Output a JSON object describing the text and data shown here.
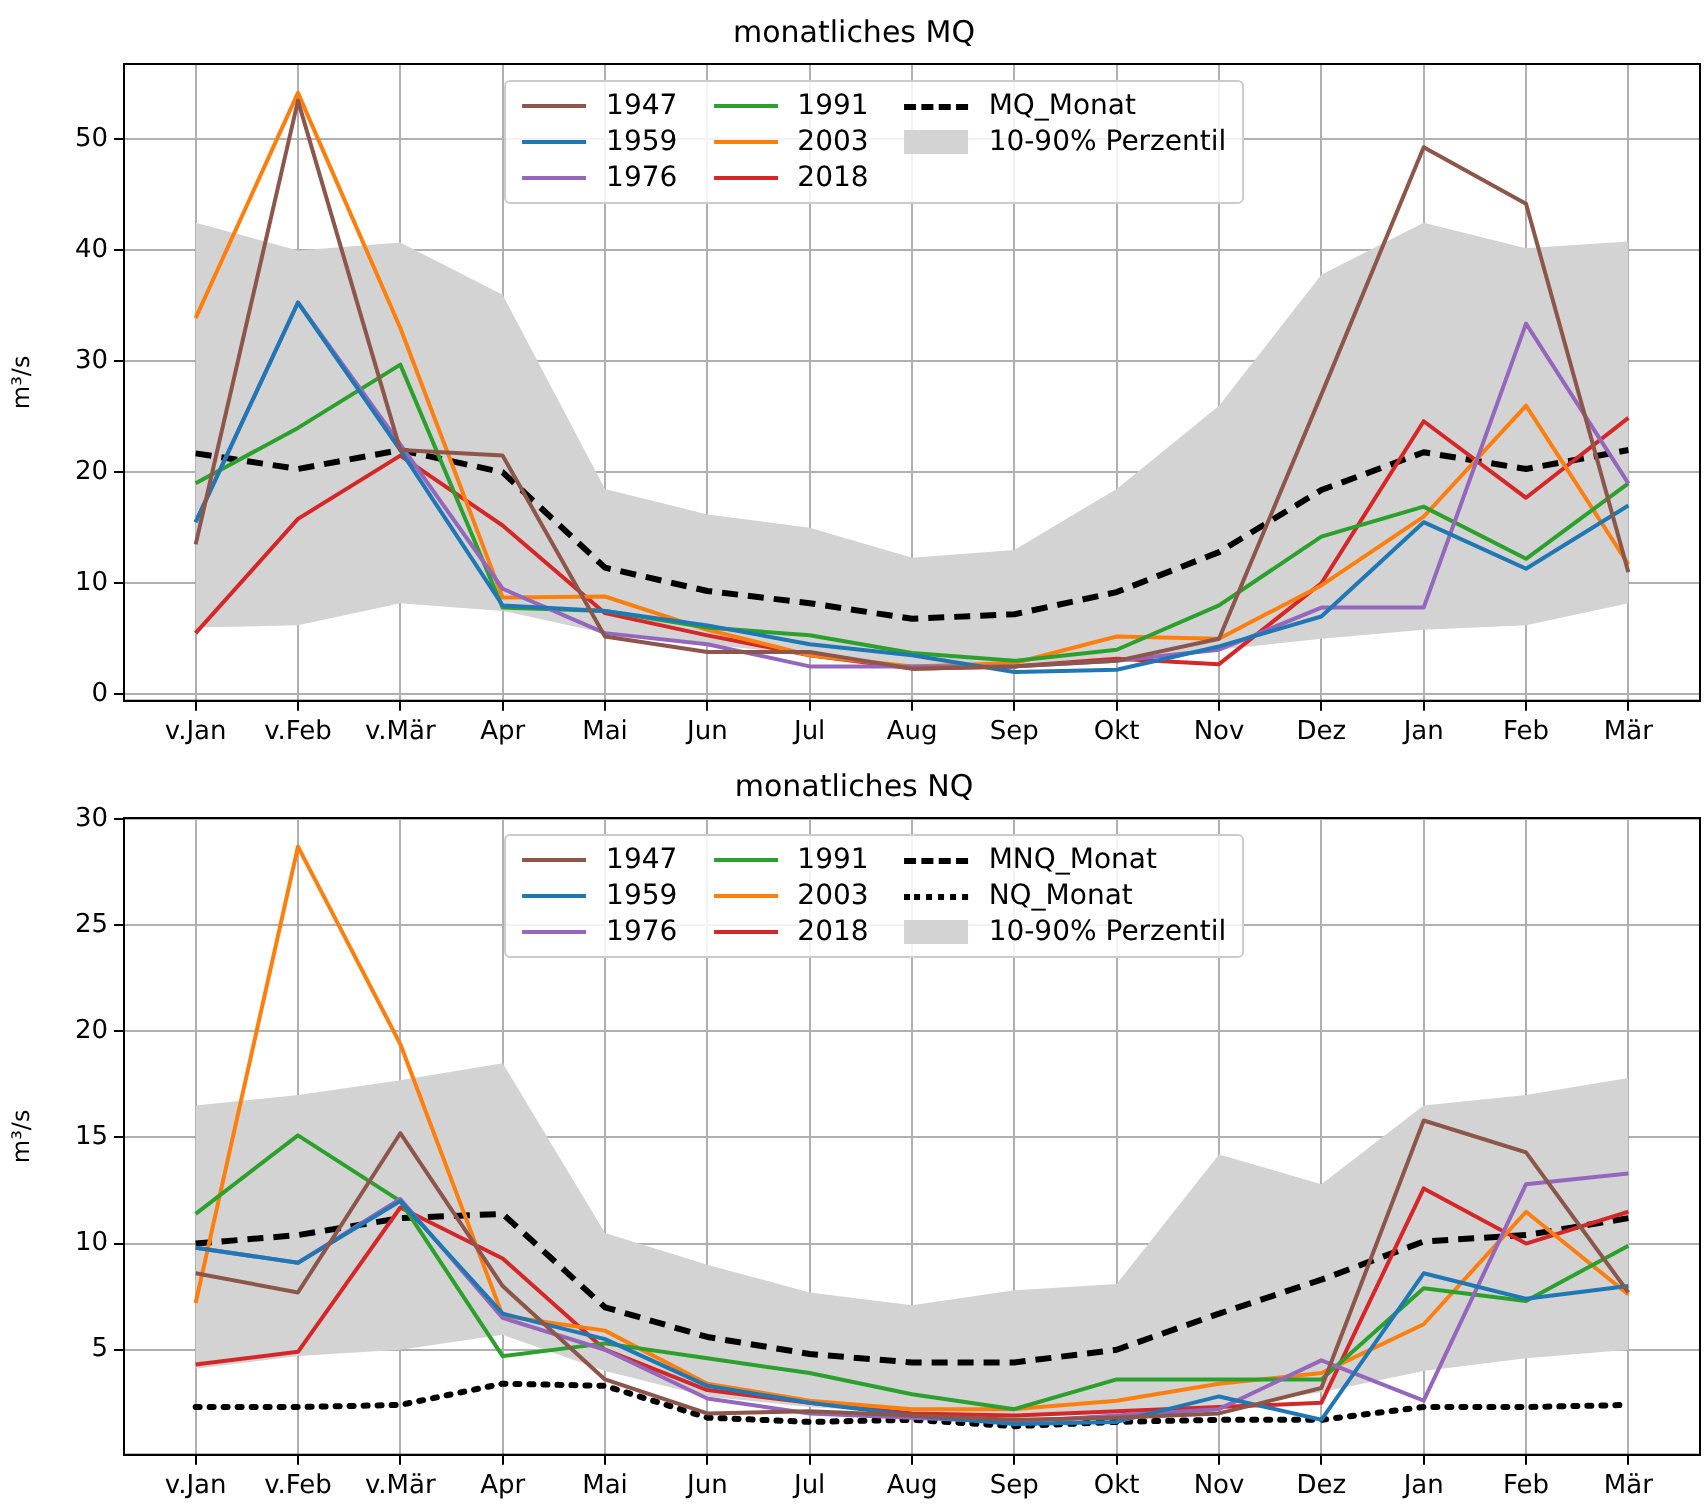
{
  "chart_data": [
    {
      "type": "line",
      "title": "monatliches MQ",
      "ylabel": "m³/s",
      "categories": [
        "v.Jan",
        "v.Feb",
        "v.Mär",
        "Apr",
        "Mai",
        "Jun",
        "Jul",
        "Aug",
        "Sep",
        "Okt",
        "Nov",
        "Dez",
        "Jan",
        "Feb",
        "Mär"
      ],
      "ylim": [
        -0.6,
        56.8
      ],
      "yticks": [
        0,
        10,
        20,
        30,
        40,
        50
      ],
      "grid": true,
      "legend": "top",
      "marker": "none",
      "annotations": [
        "10-90% Perzentil"
      ],
      "series": [
        {
          "name": "1947",
          "color": "#8c564b",
          "values": [
            13.5,
            53.5,
            22,
            21.5,
            5.2,
            3.8,
            3.8,
            2.3,
            2.5,
            3.0,
            5.0,
            27,
            49.3,
            44.2,
            11
          ]
        },
        {
          "name": "1959",
          "color": "#1f77b4",
          "values": [
            15.5,
            35.3,
            22,
            8,
            7.5,
            6.2,
            4.5,
            3.5,
            2.0,
            2.2,
            4.3,
            7,
            15.5,
            11.3,
            17
          ]
        },
        {
          "name": "1976",
          "color": "#9467bd",
          "values": [
            15.5,
            35.3,
            22.5,
            9.5,
            5.5,
            4.5,
            2.5,
            2.5,
            2.5,
            3.0,
            4.0,
            7.8,
            7.8,
            33.4,
            19
          ]
        },
        {
          "name": "1991",
          "color": "#2ca02c",
          "values": [
            19,
            24,
            29.7,
            7.8,
            7.5,
            6.0,
            5.3,
            3.7,
            3.0,
            4.0,
            8.0,
            14.2,
            16.9,
            12.2,
            19
          ]
        },
        {
          "name": "2003",
          "color": "#ff7f0e",
          "values": [
            33.9,
            54.2,
            33,
            8.7,
            8.8,
            5.8,
            3.5,
            2.5,
            2.8,
            5.2,
            5.0,
            9.8,
            16,
            26,
            11.7
          ]
        },
        {
          "name": "2018",
          "color": "#d62728",
          "values": [
            5.5,
            15.8,
            21.5,
            15.2,
            7.3,
            5.3,
            3.5,
            2.3,
            2.5,
            3.2,
            2.7,
            10,
            24.6,
            17.7,
            24.9
          ]
        },
        {
          "name": "MQ_Monat",
          "color": "#000000",
          "line_style": "dashed",
          "values": [
            21.7,
            20.3,
            22,
            20,
            11.4,
            9.3,
            8.2,
            6.8,
            7.2,
            9.2,
            12.8,
            18.4,
            21.8,
            20.3,
            22
          ],
          "lower": [
            6,
            6.2,
            8.2,
            7.5,
            5.5,
            4.5,
            3.5,
            2.5,
            2.7,
            3.2,
            4.0,
            5.0,
            5.8,
            6.2,
            8.2
          ],
          "upper": [
            42.5,
            40,
            40.7,
            36,
            18.5,
            16.2,
            15,
            12.3,
            13,
            18.5,
            26,
            37.8,
            42.5,
            40.2,
            40.8
          ]
        }
      ]
    },
    {
      "type": "line",
      "title": "monatliches NQ",
      "ylabel": "m³/s",
      "categories": [
        "v.Jan",
        "v.Feb",
        "v.Mär",
        "Apr",
        "Mai",
        "Jun",
        "Jul",
        "Aug",
        "Sep",
        "Okt",
        "Nov",
        "Dez",
        "Jan",
        "Feb",
        "Mär"
      ],
      "ylim": [
        0.05,
        30.05
      ],
      "yticks": [
        5,
        10,
        15,
        20,
        25,
        30
      ],
      "grid": true,
      "legend": "top",
      "marker": "none",
      "annotations": [
        "10-90% Perzentil"
      ],
      "series": [
        {
          "name": "1947",
          "color": "#8c564b",
          "values": [
            8.6,
            7.7,
            15.2,
            8.0,
            3.6,
            2.0,
            2.1,
            1.9,
            1.7,
            1.8,
            2.0,
            3.2,
            15.8,
            14.3,
            7.7
          ]
        },
        {
          "name": "1959",
          "color": "#1f77b4",
          "values": [
            9.8,
            9.1,
            12,
            6.7,
            5.5,
            3.3,
            2.5,
            1.9,
            1.5,
            1.6,
            2.8,
            1.7,
            8.6,
            7.4,
            8.0
          ]
        },
        {
          "name": "1976",
          "color": "#9467bd",
          "values": [
            9.8,
            9.1,
            12.1,
            6.5,
            5.0,
            2.7,
            2.0,
            1.8,
            1.6,
            1.9,
            2.2,
            4.5,
            2.6,
            12.8,
            13.3
          ]
        },
        {
          "name": "1991",
          "color": "#2ca02c",
          "values": [
            11.4,
            15.1,
            12.0,
            4.7,
            5.3,
            4.6,
            3.9,
            2.9,
            2.2,
            3.6,
            3.6,
            3.6,
            7.9,
            7.3,
            9.9
          ]
        },
        {
          "name": "2003",
          "color": "#ff7f0e",
          "values": [
            7.2,
            28.7,
            19.4,
            6.6,
            5.9,
            3.4,
            2.6,
            2.2,
            2.2,
            2.6,
            3.4,
            3.9,
            6.2,
            11.5,
            7.6
          ]
        },
        {
          "name": "2018",
          "color": "#d62728",
          "values": [
            4.3,
            4.9,
            11.7,
            9.3,
            5.0,
            3.1,
            2.5,
            2.0,
            1.9,
            2.1,
            2.3,
            2.5,
            12.6,
            10.0,
            11.5
          ]
        },
        {
          "name": "MNQ_Monat",
          "color": "#000000",
          "line_style": "dashed",
          "values": [
            10,
            10.4,
            11.2,
            11.4,
            7.0,
            5.6,
            4.8,
            4.4,
            4.4,
            5.0,
            6.7,
            8.3,
            10.1,
            10.4,
            11.2
          ],
          "lower": [
            4.1,
            4.7,
            5.0,
            5.7,
            4.0,
            2.8,
            2.3,
            2.0,
            1.8,
            2.0,
            2.3,
            3.0,
            4.0,
            4.6,
            5.0
          ],
          "upper": [
            16.5,
            17,
            17.7,
            18.5,
            10.5,
            9.0,
            7.7,
            7.1,
            7.8,
            8.1,
            14.2,
            12.8,
            16.5,
            17.0,
            17.8
          ]
        },
        {
          "name": "NQ_Monat",
          "color": "#000000",
          "line_style": "dotted",
          "values": [
            2.3,
            2.3,
            2.4,
            3.4,
            3.3,
            1.8,
            1.6,
            1.7,
            1.4,
            1.6,
            1.7,
            1.7,
            2.3,
            2.3,
            2.4
          ]
        }
      ]
    }
  ]
}
